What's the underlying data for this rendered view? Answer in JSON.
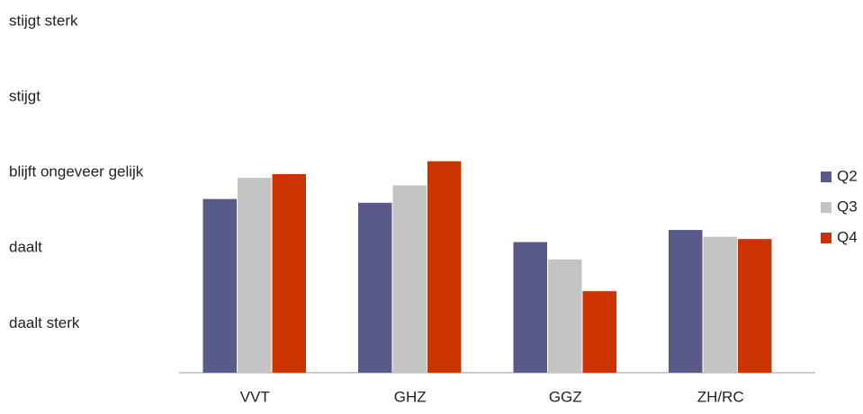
{
  "chart_data": {
    "type": "bar",
    "categories": [
      "VVT",
      "GHZ",
      "GGZ",
      "ZH/RC"
    ],
    "series": [
      {
        "name": "Q2",
        "color": "#5a5a8a",
        "values": [
          2.65,
          2.6,
          2.08,
          2.24
        ]
      },
      {
        "name": "Q3",
        "color": "#c4c4c4",
        "values": [
          2.93,
          2.83,
          1.85,
          2.15
        ]
      },
      {
        "name": "Q4",
        "color": "#cc3300",
        "values": [
          2.98,
          3.15,
          1.43,
          2.12
        ]
      }
    ],
    "ylim": [
      0.35,
      5
    ],
    "yticks": [
      {
        "value": 1,
        "label": "daalt sterk"
      },
      {
        "value": 2,
        "label": "daalt"
      },
      {
        "value": 3,
        "label": "blijft ongeveer gelijk"
      },
      {
        "value": 4,
        "label": "stijgt"
      },
      {
        "value": 5,
        "label": "stijgt sterk"
      }
    ],
    "grid": false,
    "legend": "right"
  }
}
